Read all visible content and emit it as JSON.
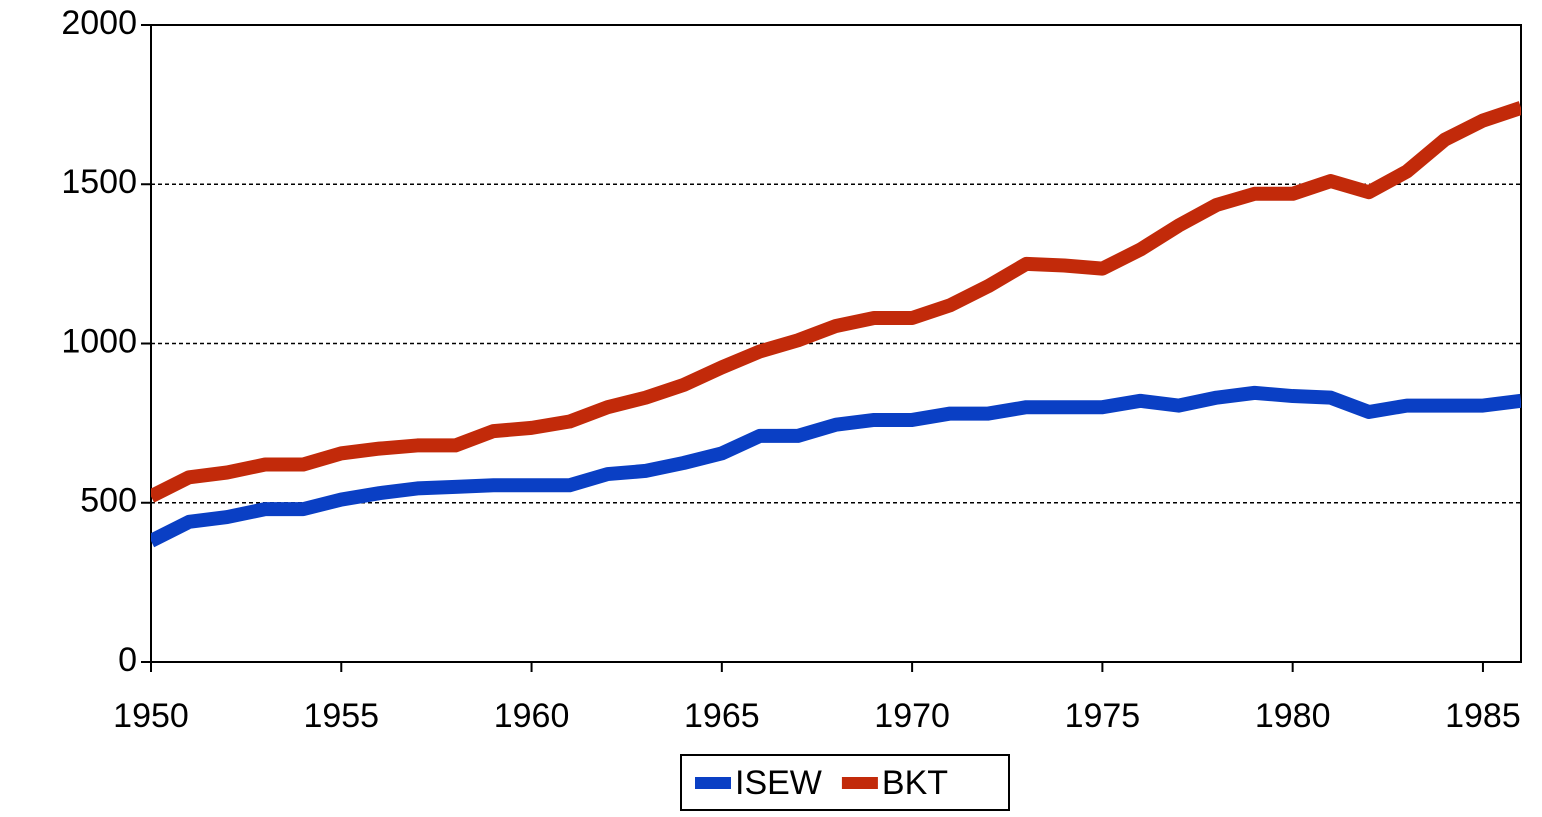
{
  "chart_data": {
    "type": "line",
    "x": [
      1950,
      1951,
      1952,
      1953,
      1954,
      1955,
      1956,
      1957,
      1958,
      1959,
      1960,
      1961,
      1962,
      1963,
      1964,
      1965,
      1966,
      1967,
      1968,
      1969,
      1970,
      1971,
      1972,
      1973,
      1974,
      1975,
      1976,
      1977,
      1978,
      1979,
      1980,
      1981,
      1982,
      1983,
      1984,
      1985,
      1986
    ],
    "series": [
      {
        "name": "ISEW",
        "color": "#0a3fc4",
        "values": [
          380,
          440,
          455,
          480,
          480,
          510,
          530,
          545,
          550,
          555,
          555,
          555,
          590,
          600,
          625,
          655,
          710,
          710,
          745,
          760,
          760,
          780,
          780,
          800,
          800,
          800,
          820,
          805,
          830,
          845,
          835,
          830,
          785,
          805,
          805,
          805,
          820
        ]
      },
      {
        "name": "BKT",
        "color": "#c22a0a",
        "values": [
          520,
          580,
          595,
          620,
          620,
          655,
          670,
          680,
          680,
          725,
          735,
          755,
          800,
          830,
          870,
          925,
          975,
          1010,
          1055,
          1080,
          1080,
          1120,
          1180,
          1250,
          1245,
          1235,
          1295,
          1370,
          1435,
          1470,
          1470,
          1510,
          1475,
          1540,
          1640,
          1700,
          1740
        ]
      }
    ],
    "xlim": [
      1950,
      1986
    ],
    "xticks": [
      1950,
      1955,
      1960,
      1965,
      1970,
      1975,
      1980,
      1985
    ],
    "ylim": [
      0,
      2000
    ],
    "yticks": [
      0,
      500,
      1000,
      1500,
      2000
    ],
    "grid": true,
    "legend": "bottom"
  }
}
